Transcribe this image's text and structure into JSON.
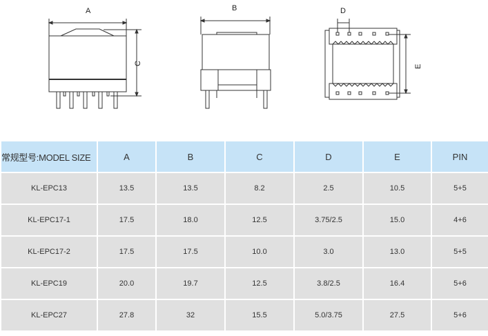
{
  "diagrams": {
    "front_label": "A",
    "height_label": "C",
    "side_label": "B",
    "pin_pitch_label": "D",
    "row_spacing_label": "E"
  },
  "table": {
    "headers": [
      "常规型号:MODEL SIZE",
      "A",
      "B",
      "C",
      "D",
      "E",
      "PIN"
    ],
    "rows": [
      [
        "KL-EPC13",
        "13.5",
        "13.5",
        "8.2",
        "2.5",
        "10.5",
        "5+5"
      ],
      [
        "KL-EPC17-1",
        "17.5",
        "18.0",
        "12.5",
        "3.75/2.5",
        "15.0",
        "4+6"
      ],
      [
        "KL-EPC17-2",
        "17.5",
        "17.5",
        "10.0",
        "3.0",
        "13.0",
        "5+5"
      ],
      [
        "KL-EPC19",
        "20.0",
        "19.7",
        "12.5",
        "3.8/2.5",
        "16.4",
        "5+6"
      ],
      [
        "KL-EPC27",
        "27.8",
        "32",
        "15.5",
        "5.0/3.75",
        "27.5",
        "5+6"
      ]
    ]
  },
  "colors": {
    "header_bg": "#c6e3f7",
    "row_bg": "#e0e0e0"
  }
}
